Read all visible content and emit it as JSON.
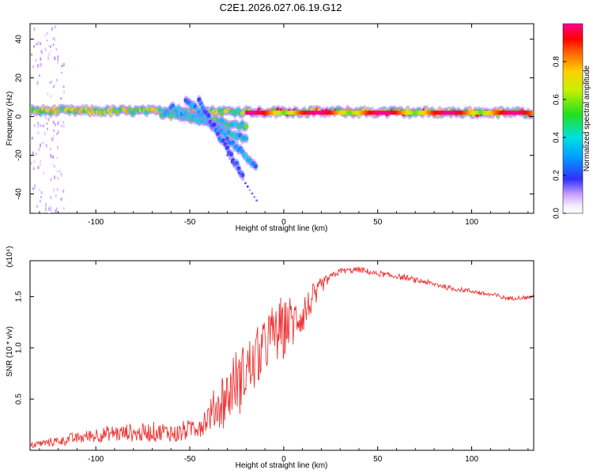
{
  "title": "C2E1.2026.027.06.19.G12",
  "chart_data": [
    {
      "type": "heatmap",
      "name": "spectrogram",
      "xlabel": "Height of straight line (km)",
      "ylabel": "Frequency (Hz)",
      "xlim": [
        -135,
        133
      ],
      "ylim": [
        -50,
        48
      ],
      "xticks": [
        -100,
        -50,
        0,
        50,
        100
      ],
      "yticks": [
        -40,
        -20,
        0,
        20,
        40
      ],
      "colorbar": {
        "label": "Normalized spectral amplitude",
        "range": [
          0.0,
          1.0
        ],
        "ticks": [
          0.0,
          0.2,
          0.4,
          0.6,
          0.8
        ],
        "tick_labels": [
          "0.0",
          "0.2",
          "0.4",
          "0.6",
          "0.8"
        ]
      },
      "bands": [
        {
          "name": "main-band",
          "x_start": -135,
          "x_end": 133,
          "f_start": 3,
          "f_end": 2,
          "amplitude": 0.7
        },
        {
          "name": "descending-band-1",
          "x_start": -65,
          "x_end": -20,
          "f_start": 2,
          "f_end": -5,
          "amplitude": 0.5
        },
        {
          "name": "descending-band-2",
          "x_start": -60,
          "x_end": -20,
          "f_start": 5,
          "f_end": -12,
          "amplitude": 0.4
        },
        {
          "name": "descending-band-3",
          "x_start": -52,
          "x_end": -15,
          "f_start": 9,
          "f_end": -25,
          "amplitude": 0.35
        },
        {
          "name": "descending-band-4",
          "x_start": -45,
          "x_end": -22,
          "f_start": 8,
          "f_end": -30,
          "amplitude": 0.25
        }
      ]
    },
    {
      "type": "line",
      "name": "snr",
      "xlabel": "Height of straight line (km)",
      "ylabel": "SNR (10 * v/v)",
      "y_multiplier": "(x10⁴)",
      "xlim": [
        -135,
        133
      ],
      "ylim": [
        0,
        1.85
      ],
      "xticks": [
        -100,
        -50,
        0,
        50,
        100
      ],
      "yticks": [
        0.5,
        1.0,
        1.5
      ],
      "ytick_labels": [
        "0.5",
        "1.0",
        "1.5"
      ],
      "color": "#ee3333",
      "trend": {
        "x": [
          -135,
          -110,
          -100,
          -80,
          -60,
          -50,
          -40,
          -30,
          -20,
          -10,
          0,
          10,
          15,
          20,
          25,
          30,
          40,
          50,
          60,
          70,
          80,
          90,
          100,
          110,
          120,
          133
        ],
        "y": [
          0.05,
          0.12,
          0.15,
          0.17,
          0.17,
          0.2,
          0.3,
          0.55,
          0.75,
          1.05,
          1.2,
          1.3,
          1.45,
          1.6,
          1.7,
          1.75,
          1.76,
          1.72,
          1.7,
          1.66,
          1.62,
          1.58,
          1.55,
          1.52,
          1.48,
          1.5
        ]
      },
      "noise": {
        "x": [
          -135,
          -90,
          -50,
          -40,
          -30,
          -20,
          -10,
          0,
          10,
          20,
          25,
          40,
          133
        ],
        "y": [
          0.03,
          0.08,
          0.1,
          0.15,
          0.3,
          0.3,
          0.3,
          0.3,
          0.2,
          0.08,
          0.03,
          0.03,
          0.02
        ]
      }
    }
  ]
}
